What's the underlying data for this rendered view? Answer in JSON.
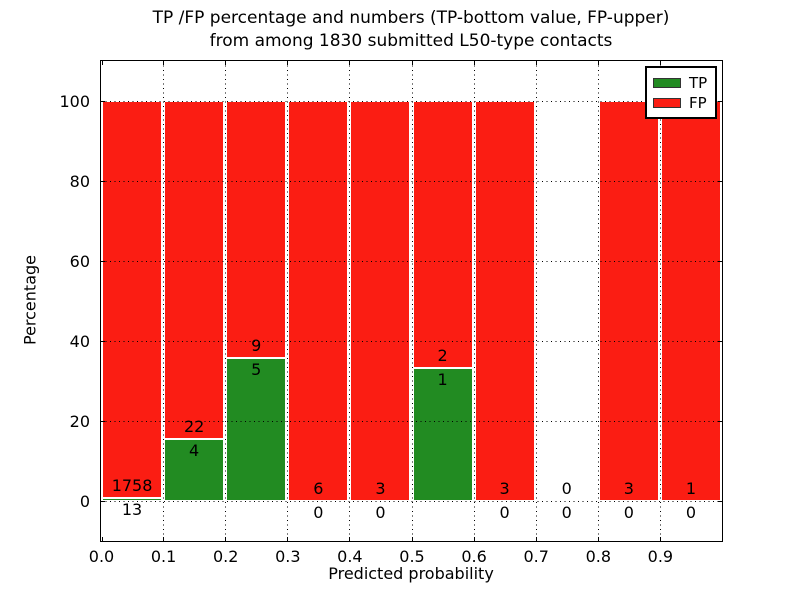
{
  "figure": {
    "title_line1": "TP /FP percentage and numbers (TP-bottom value, FP-upper)",
    "title_line2": "from among 1830 submitted L50-type contacts",
    "xlabel": "Predicted probability",
    "ylabel": "Percentage"
  },
  "legend": {
    "items": [
      {
        "label": "TP",
        "color": "#228b22"
      },
      {
        "label": "FP",
        "color": "#fb1d13"
      }
    ],
    "position": "upper right"
  },
  "chart_data": {
    "type": "bar",
    "stacked": true,
    "title": "TP /FP percentage and numbers (TP-bottom value, FP-upper) from among 1830 submitted L50-type contacts",
    "xlabel": "Predicted probability",
    "ylabel": "Percentage",
    "categories": [
      "0.0-0.1",
      "0.1-0.2",
      "0.2-0.3",
      "0.3-0.4",
      "0.4-0.5",
      "0.5-0.6",
      "0.6-0.7",
      "0.7-0.8",
      "0.8-0.9",
      "0.9-1.0"
    ],
    "bin_edges": [
      0.0,
      0.1,
      0.2,
      0.3,
      0.4,
      0.5,
      0.6,
      0.7,
      0.8,
      0.9,
      1.0
    ],
    "series": [
      {
        "name": "TP",
        "color": "#228b22",
        "counts": [
          13,
          4,
          5,
          0,
          0,
          1,
          0,
          0,
          0,
          0
        ],
        "percent": [
          0.73,
          15.38,
          35.71,
          0,
          0,
          33.33,
          0,
          0,
          0,
          0
        ]
      },
      {
        "name": "FP",
        "color": "#fb1d13",
        "counts": [
          1758,
          22,
          9,
          6,
          3,
          2,
          3,
          0,
          3,
          1
        ],
        "percent": [
          99.27,
          84.62,
          64.29,
          100,
          100,
          66.67,
          100,
          0,
          100,
          100
        ]
      }
    ],
    "bar_edge_color": "#ffffff",
    "xticks": [
      "0.0",
      "0.1",
      "0.2",
      "0.3",
      "0.4",
      "0.5",
      "0.6",
      "0.7",
      "0.8",
      "0.9"
    ],
    "yticks": [
      0,
      20,
      40,
      60,
      80,
      100
    ],
    "xlim": [
      0.0,
      1.0
    ],
    "ylim": [
      -10,
      110
    ],
    "grid": "dotted",
    "grid_color": "#000000",
    "legend_position": "upper right",
    "total_contacts": 1830
  }
}
